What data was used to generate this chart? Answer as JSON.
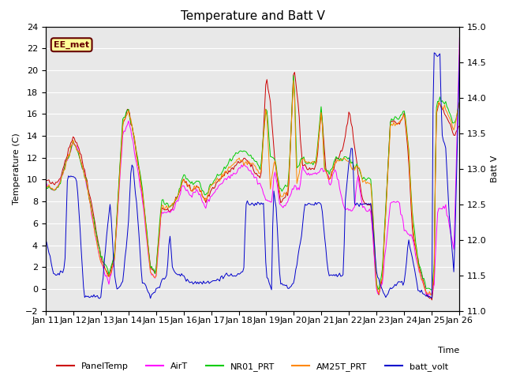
{
  "title": "Temperature and Batt V",
  "xlabel": "Time",
  "ylabel_left": "Temperature (C)",
  "ylabel_right": "Batt V",
  "ylim_left": [
    -2,
    24
  ],
  "ylim_right": [
    11.0,
    15.0
  ],
  "xtick_labels": [
    "Jan 11",
    "Jan 12",
    "Jan 13",
    "Jan 14",
    "Jan 15",
    "Jan 16",
    "Jan 17",
    "Jan 18",
    "Jan 19",
    "Jan 20",
    "Jan 21",
    "Jan 22",
    "Jan 23",
    "Jan 24",
    "Jan 25",
    "Jan 26"
  ],
  "legend": [
    "PanelTemp",
    "AirT",
    "NR01_PRT",
    "AM25T_PRT",
    "batt_volt"
  ],
  "colors": {
    "PanelTemp": "#cc0000",
    "AirT": "#ff00ff",
    "NR01_PRT": "#00cc00",
    "AM25T_PRT": "#ff8800",
    "batt_volt": "#0000cc"
  },
  "annotation_text": "EE_met",
  "annotation_color": "#660000",
  "annotation_bg": "#ffff99",
  "fig_bg": "#ffffff",
  "plot_bg": "#e8e8e8",
  "title_fontsize": 11,
  "axis_fontsize": 8,
  "legend_fontsize": 8
}
